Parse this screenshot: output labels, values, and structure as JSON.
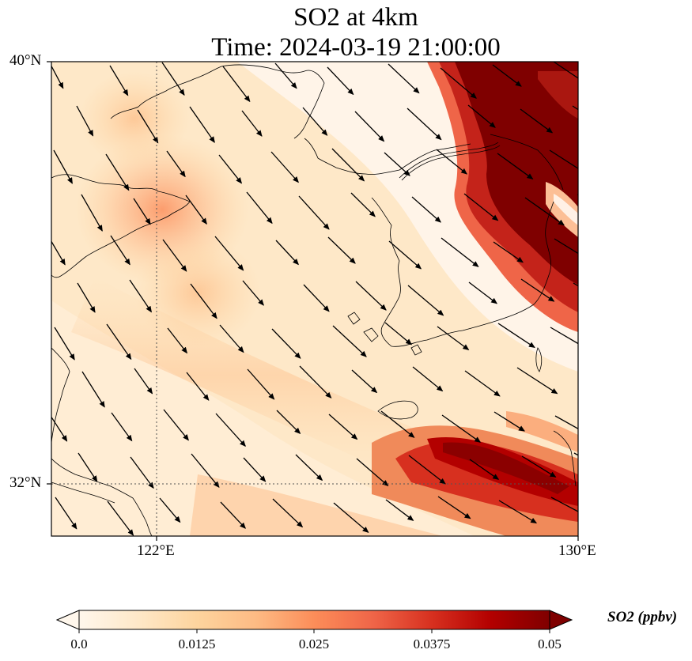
{
  "title": {
    "line1": "SO2 at 4km",
    "line2": "Time: 2024-03-19 21:00:00"
  },
  "axes": {
    "lat_ticks": [
      "40°N",
      "32°N"
    ],
    "lon_ticks": [
      "122°E",
      "130°E"
    ],
    "lat_range": [
      31,
      40
    ],
    "lon_range": [
      120,
      130
    ],
    "gridlines": {
      "lat": [
        32
      ],
      "lon": [
        122
      ],
      "style": "dotted"
    }
  },
  "colorbar": {
    "label": "SO2 (ppbv)",
    "ticks": [
      "0.0",
      "0.0125",
      "0.025",
      "0.0375",
      "0.05"
    ],
    "range": [
      0.0,
      0.05
    ],
    "colormap": "OrRd",
    "extend": "both",
    "colors": [
      "#fff7ec",
      "#fee8c8",
      "#fdd49e",
      "#fdbb84",
      "#fc8d59",
      "#ef6548",
      "#d7301f",
      "#b30000",
      "#7f0000"
    ]
  },
  "map_content": {
    "variable": "SO2",
    "level": "4km",
    "high_concentration_regions": [
      {
        "area": "northeast corner (Korean peninsula north)",
        "value": ">0.05"
      },
      {
        "area": "southeast band south of Korea",
        "value": "0.04-0.05"
      }
    ],
    "moderate_region": {
      "area": "Shandong peninsula / Bohai area",
      "value": "0.015-0.02"
    },
    "wind_direction": "northwest to southeast"
  }
}
